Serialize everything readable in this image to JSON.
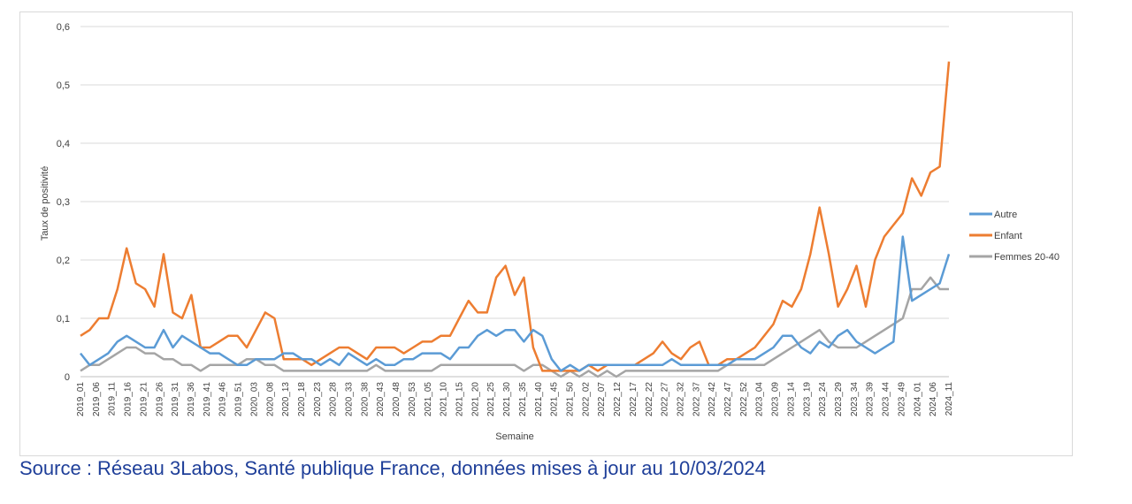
{
  "chart_data": {
    "type": "line",
    "title": "",
    "xlabel": "Semaine",
    "ylabel": "Taux de positivité",
    "ylim": [
      0,
      0.6
    ],
    "y_ticks": [
      "0",
      "0,1",
      "0,2",
      "0,3",
      "0,4",
      "0,5",
      "0,6"
    ],
    "grid": "horizontal",
    "legend_position": "right",
    "x_tick_labels": [
      "2019_01",
      "2019_06",
      "2019_11",
      "2019_16",
      "2019_21",
      "2019_26",
      "2019_31",
      "2019_36",
      "2019_41",
      "2019_46",
      "2019_51",
      "2020_03",
      "2020_08",
      "2020_13",
      "2020_18",
      "2020_23",
      "2020_28",
      "2020_33",
      "2020_38",
      "2020_43",
      "2020_48",
      "2020_53",
      "2021_05",
      "2021_10",
      "2021_15",
      "2021_20",
      "2021_25",
      "2021_30",
      "2021_35",
      "2021_40",
      "2021_45",
      "2021_50",
      "2022_02",
      "2022_07",
      "2022_12",
      "2022_17",
      "2022_22",
      "2022_27",
      "2022_32",
      "2022_37",
      "2022_42",
      "2022_47",
      "2022_52",
      "2023_04",
      "2023_09",
      "2023_14",
      "2023_19",
      "2023_24",
      "2023_29",
      "2023_34",
      "2023_39",
      "2023_44",
      "2023_49",
      "2024_01",
      "2024_06",
      "2024_11"
    ],
    "series": [
      {
        "name": "Autre",
        "color": "#5b9bd5",
        "values": [
          0.04,
          0.02,
          0.03,
          0.04,
          0.06,
          0.07,
          0.06,
          0.05,
          0.05,
          0.08,
          0.05,
          0.07,
          0.06,
          0.05,
          0.04,
          0.04,
          0.03,
          0.02,
          0.02,
          0.03,
          0.03,
          0.03,
          0.04,
          0.04,
          0.03,
          0.03,
          0.02,
          0.03,
          0.02,
          0.04,
          0.03,
          0.02,
          0.03,
          0.02,
          0.02,
          0.03,
          0.03,
          0.04,
          0.04,
          0.04,
          0.03,
          0.05,
          0.05,
          0.07,
          0.08,
          0.07,
          0.08,
          0.08,
          0.06,
          0.08,
          0.07,
          0.03,
          0.01,
          0.02,
          0.01,
          0.02,
          0.02,
          0.02,
          0.02,
          0.02,
          0.02,
          0.02,
          0.02,
          0.02,
          0.03,
          0.02,
          0.02,
          0.02,
          0.02,
          0.02,
          0.02,
          0.03,
          0.03,
          0.03,
          0.04,
          0.05,
          0.07,
          0.07,
          0.05,
          0.04,
          0.06,
          0.05,
          0.07,
          0.08,
          0.06,
          0.05,
          0.04,
          0.05,
          0.06,
          0.24,
          0.13,
          0.14,
          0.15,
          0.16,
          0.21
        ]
      },
      {
        "name": "Enfant",
        "color": "#ed7d31",
        "values": [
          0.07,
          0.08,
          0.1,
          0.1,
          0.15,
          0.22,
          0.16,
          0.15,
          0.12,
          0.21,
          0.11,
          0.1,
          0.14,
          0.05,
          0.05,
          0.06,
          0.07,
          0.07,
          0.05,
          0.08,
          0.11,
          0.1,
          0.03,
          0.03,
          0.03,
          0.02,
          0.03,
          0.04,
          0.05,
          0.05,
          0.04,
          0.03,
          0.05,
          0.05,
          0.05,
          0.04,
          0.05,
          0.06,
          0.06,
          0.07,
          0.07,
          0.1,
          0.13,
          0.11,
          0.11,
          0.17,
          0.19,
          0.14,
          0.17,
          0.05,
          0.01,
          0.01,
          0.01,
          0.01,
          0.01,
          0.02,
          0.01,
          0.02,
          0.02,
          0.02,
          0.02,
          0.03,
          0.04,
          0.06,
          0.04,
          0.03,
          0.05,
          0.06,
          0.02,
          0.02,
          0.03,
          0.03,
          0.04,
          0.05,
          0.07,
          0.09,
          0.13,
          0.12,
          0.15,
          0.21,
          0.29,
          0.21,
          0.12,
          0.15,
          0.19,
          0.12,
          0.2,
          0.24,
          0.26,
          0.28,
          0.34,
          0.31,
          0.35,
          0.36,
          0.54
        ]
      },
      {
        "name": "Femmes 20-40",
        "color": "#a5a5a5",
        "values": [
          0.01,
          0.02,
          0.02,
          0.03,
          0.04,
          0.05,
          0.05,
          0.04,
          0.04,
          0.03,
          0.03,
          0.02,
          0.02,
          0.01,
          0.02,
          0.02,
          0.02,
          0.02,
          0.03,
          0.03,
          0.02,
          0.02,
          0.01,
          0.01,
          0.01,
          0.01,
          0.01,
          0.01,
          0.01,
          0.01,
          0.01,
          0.01,
          0.02,
          0.01,
          0.01,
          0.01,
          0.01,
          0.01,
          0.01,
          0.02,
          0.02,
          0.02,
          0.02,
          0.02,
          0.02,
          0.02,
          0.02,
          0.02,
          0.01,
          0.02,
          0.02,
          0.01,
          0.0,
          0.01,
          0.0,
          0.01,
          0.0,
          0.01,
          0.0,
          0.01,
          0.01,
          0.01,
          0.01,
          0.01,
          0.01,
          0.01,
          0.01,
          0.01,
          0.01,
          0.01,
          0.02,
          0.02,
          0.02,
          0.02,
          0.02,
          0.03,
          0.04,
          0.05,
          0.06,
          0.07,
          0.08,
          0.06,
          0.05,
          0.05,
          0.05,
          0.06,
          0.07,
          0.08,
          0.09,
          0.1,
          0.15,
          0.15,
          0.17,
          0.15,
          0.15
        ]
      }
    ]
  },
  "source_text": "Source : Réseau 3Labos, Santé publique France, données mises à jour au 10/03/2024"
}
